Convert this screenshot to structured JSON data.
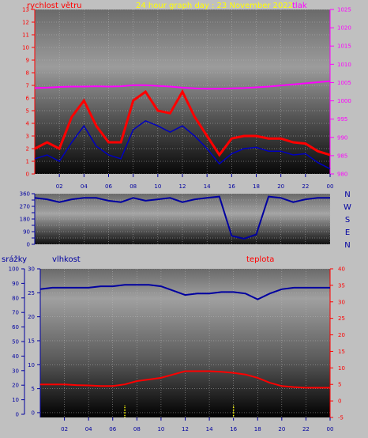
{
  "header": {
    "wind_label": "rychlost větru",
    "title": "24 hour graph day : 23 November 2022",
    "pressure_label": "tlak"
  },
  "lower_labels": {
    "rain": "srážky",
    "humidity": "vlhkost",
    "temperature": "teplota"
  },
  "colors": {
    "wind": "#ff0000",
    "wind_dir": "#0000a0",
    "pressure": "#ff00ff",
    "title": "#ffff00",
    "humidity": "#0000a0",
    "temperature": "#ff0000",
    "rain": "#ffff00"
  },
  "chart_data": [
    {
      "type": "line",
      "id": "wind",
      "ylim": [
        0,
        13
      ],
      "yticks": [
        "0",
        "1",
        "2",
        "3",
        "4",
        "5",
        "6",
        "7",
        "8",
        "9",
        "10",
        "11",
        "12",
        "13"
      ],
      "y2lim": [
        980,
        1025
      ],
      "y2ticks": [
        "980",
        "985",
        "990",
        "995",
        "1000",
        "1005",
        "1010",
        "1015",
        "1020",
        "1025"
      ],
      "x_hours": [
        0,
        1,
        2,
        3,
        4,
        5,
        6,
        7,
        8,
        9,
        10,
        11,
        12,
        13,
        14,
        15,
        16,
        17,
        18,
        19,
        20,
        21,
        22,
        23,
        24
      ],
      "xticks": [
        "02",
        "04",
        "06",
        "08",
        "10",
        "12",
        "14",
        "16",
        "18",
        "20",
        "22",
        "00"
      ],
      "series": [
        {
          "name": "rychlost větru",
          "values": [
            1.2,
            1.5,
            1.0,
            2.5,
            3.8,
            2.2,
            1.5,
            1.2,
            3.5,
            4.2,
            3.8,
            3.3,
            3.8,
            3.0,
            2.0,
            0.8,
            1.6,
            2.0,
            2.1,
            1.8,
            1.8,
            1.5,
            1.6,
            0.9,
            0.4
          ]
        },
        {
          "name": "nárazy",
          "values": [
            2.0,
            2.5,
            2.0,
            4.5,
            5.8,
            3.8,
            2.5,
            2.5,
            5.8,
            6.5,
            5.0,
            4.8,
            6.5,
            4.5,
            3.0,
            1.5,
            2.8,
            3.0,
            3.0,
            2.8,
            2.8,
            2.5,
            2.4,
            1.8,
            1.5
          ]
        },
        {
          "name": "tlak",
          "values": [
            1003.5,
            1003.6,
            1003.8,
            1003.9,
            1003.9,
            1004.0,
            1003.9,
            1004.0,
            1004.3,
            1004.3,
            1004.1,
            1003.9,
            1003.6,
            1003.4,
            1003.3,
            1003.3,
            1003.4,
            1003.5,
            1003.7,
            1003.9,
            1004.2,
            1004.5,
            1004.8,
            1005.1,
            1005.4
          ]
        }
      ]
    },
    {
      "type": "scatter",
      "id": "wind_direction",
      "ylim": [
        0,
        360
      ],
      "yticks": [
        "0",
        "45",
        "90",
        "135",
        "180",
        "225",
        "270",
        "315",
        "360"
      ],
      "compass": [
        "N",
        "W",
        "S",
        "E",
        "N"
      ],
      "series": [
        {
          "name": "směr větru",
          "values": [
            330,
            320,
            300,
            320,
            330,
            330,
            310,
            300,
            330,
            310,
            320,
            330,
            300,
            320,
            330,
            340,
            60,
            40,
            70,
            340,
            330,
            300,
            320,
            330,
            330
          ]
        }
      ]
    },
    {
      "type": "line",
      "id": "humidity_temperature",
      "ylim_rain": [
        0,
        100
      ],
      "rain_ticks": [
        "0",
        "10",
        "20",
        "30",
        "40",
        "50",
        "60",
        "70",
        "80",
        "90",
        "100"
      ],
      "ylim_humidity": [
        -1,
        30
      ],
      "humidity_ticks": [
        "0",
        "5",
        "10",
        "15",
        "20",
        "25",
        "30"
      ],
      "ylim_temperature": [
        -5,
        40
      ],
      "temperature_ticks": [
        "-5",
        "0",
        "5",
        "10",
        "15",
        "20",
        "25",
        "30",
        "35",
        "40"
      ],
      "xticks": [
        "02",
        "04",
        "06",
        "08",
        "10",
        "12",
        "14",
        "16",
        "18",
        "20",
        "22",
        "00"
      ],
      "series": [
        {
          "name": "vlhkost",
          "values": [
            86,
            87,
            87,
            87,
            87,
            88,
            88,
            89,
            89,
            89,
            88,
            85,
            82,
            83,
            83,
            84,
            84,
            83,
            79,
            83,
            86,
            87,
            87,
            87,
            87
          ]
        },
        {
          "name": "teplota",
          "values": [
            5.0,
            5.0,
            5.0,
            4.8,
            4.7,
            4.5,
            4.5,
            5.0,
            6.0,
            6.5,
            7.0,
            8.0,
            9.0,
            9.0,
            9.0,
            8.8,
            8.5,
            8.0,
            7.0,
            5.5,
            4.5,
            4.2,
            4.0,
            4.0,
            4.0
          ]
        },
        {
          "name": "srážky",
          "values": [
            0,
            0,
            0,
            0,
            0,
            0,
            0,
            1,
            0,
            0,
            0,
            0,
            0,
            0,
            0,
            0,
            1,
            0,
            0,
            0,
            0,
            0,
            0,
            0,
            0
          ]
        }
      ]
    }
  ]
}
